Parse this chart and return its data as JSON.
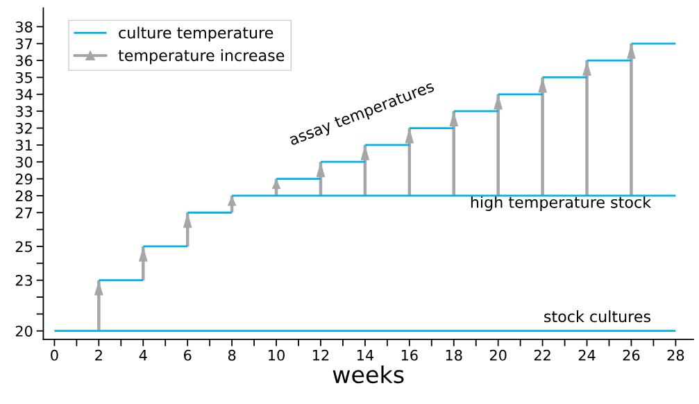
{
  "chart_data": {
    "type": "line",
    "xlabel": "weeks",
    "xlim": [
      -0.5,
      28.8
    ],
    "ylim": [
      19.5,
      39.1
    ],
    "xticks": [
      0,
      {
        "value": 1,
        "label": null
      },
      2,
      {
        "value": 3,
        "label": null
      },
      4,
      {
        "value": 5,
        "label": null
      },
      6,
      {
        "value": 7,
        "label": null
      },
      8,
      {
        "value": 9,
        "label": null
      },
      10,
      {
        "value": 11,
        "label": null
      },
      12,
      {
        "value": 13,
        "label": null
      },
      14,
      {
        "value": 15,
        "label": null
      },
      16,
      {
        "value": 17,
        "label": null
      },
      18,
      {
        "value": 19,
        "label": null
      },
      20,
      {
        "value": 21,
        "label": null
      },
      22,
      {
        "value": 23,
        "label": null
      },
      24,
      {
        "value": 25,
        "label": null
      },
      26,
      {
        "value": 27,
        "label": null
      },
      28
    ],
    "yticks": [
      20,
      {
        "value": 21,
        "label": null
      },
      {
        "value": 22,
        "label": null
      },
      23,
      {
        "value": 24,
        "label": null
      },
      25,
      {
        "value": 26,
        "label": null
      },
      27,
      28,
      29,
      30,
      31,
      32,
      33,
      34,
      35,
      36,
      37,
      38
    ],
    "grid": false,
    "legend": "top left",
    "marker": "none",
    "line_style": "solid",
    "series": [
      {
        "name": "culture temperature",
        "color": "#00b0f0",
        "x": [
          0,
          28,
          null,
          2,
          4,
          null,
          4,
          6,
          null,
          6,
          8,
          null,
          8,
          28,
          null,
          10,
          12,
          null,
          12,
          14,
          null,
          14,
          16,
          null,
          16,
          18,
          null,
          18,
          20,
          null,
          20,
          22,
          null,
          22,
          24,
          null,
          24,
          26,
          null,
          26,
          28
        ],
        "values": [
          20,
          20,
          null,
          23,
          23,
          null,
          25,
          25,
          null,
          27,
          27,
          null,
          28,
          28,
          null,
          29,
          29,
          null,
          30,
          30,
          null,
          31,
          31,
          null,
          32,
          32,
          null,
          33,
          33,
          null,
          34,
          34,
          null,
          35,
          35,
          null,
          36,
          36,
          null,
          37,
          37
        ]
      },
      {
        "name": "temperature increase",
        "type": "bar",
        "color": "#a6a6a6",
        "x": [
          2,
          4,
          6,
          8,
          10,
          12,
          14,
          16,
          18,
          20,
          22,
          24,
          26
        ],
        "base": [
          20,
          23,
          25,
          27,
          28,
          28,
          28,
          28,
          28,
          28,
          28,
          28,
          28
        ],
        "values": [
          3,
          2,
          2,
          1,
          1,
          2,
          3,
          4,
          5,
          6,
          7,
          8,
          9
        ]
      }
    ],
    "annotations": [
      "assay temperatures",
      "high temperature stock",
      "stock cultures"
    ]
  }
}
